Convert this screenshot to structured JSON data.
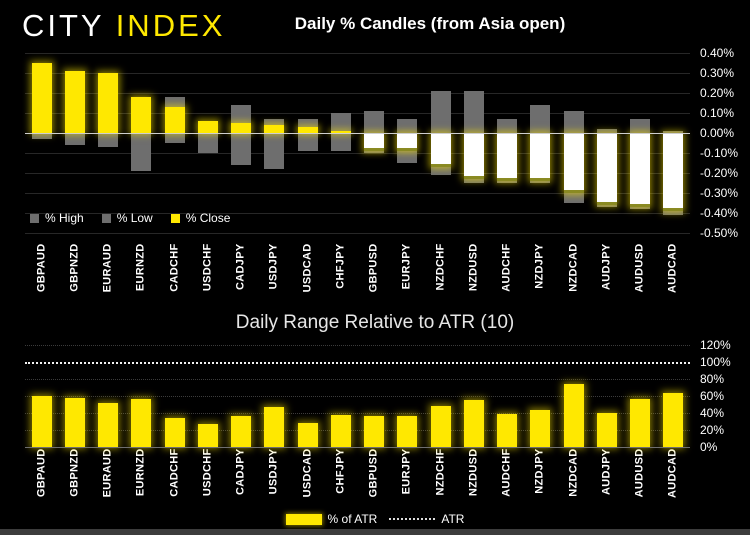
{
  "logo": {
    "city": "CITY",
    "index": "INDEX"
  },
  "colors": {
    "background": "#000000",
    "accent_yellow": "#FFE800",
    "wick_gray": "#6E6E6E",
    "down_candle_white": "#FFFFFF",
    "atr_line_white": "#F2F2F2"
  },
  "chart_data": [
    {
      "type": "bar",
      "subtype": "daily-percent-candles",
      "title": "Daily % Candles (from Asia open)",
      "categories": [
        "GBPAUD",
        "GBPNZD",
        "EURAUD",
        "EURNZD",
        "CADCHF",
        "USDCHF",
        "CADJPY",
        "USDJPY",
        "USDCAD",
        "CHFJPY",
        "GBPUSD",
        "EURJPY",
        "NZDCHF",
        "NZDUSD",
        "AUDCHF",
        "NZDJPY",
        "NZDCAD",
        "AUDJPY",
        "AUDUSD",
        "AUDCAD"
      ],
      "series": [
        {
          "name": "% High",
          "values": [
            0.35,
            0.31,
            0.3,
            0.18,
            0.18,
            0.06,
            0.14,
            0.07,
            0.07,
            0.1,
            0.11,
            0.07,
            0.21,
            0.21,
            0.07,
            0.14,
            0.11,
            0.02,
            0.07,
            0.01
          ]
        },
        {
          "name": "% Low",
          "values": [
            -0.03,
            -0.06,
            -0.07,
            -0.19,
            -0.05,
            -0.1,
            -0.16,
            -0.18,
            -0.09,
            -0.09,
            -0.1,
            -0.15,
            -0.21,
            -0.25,
            -0.25,
            -0.25,
            -0.35,
            -0.37,
            -0.38,
            -0.41
          ]
        },
        {
          "name": "% Close",
          "values": [
            0.35,
            0.31,
            0.3,
            0.18,
            0.13,
            0.06,
            0.05,
            0.04,
            0.03,
            0.01,
            -0.09,
            -0.09,
            -0.17,
            -0.23,
            -0.24,
            -0.24,
            -0.3,
            -0.36,
            -0.37,
            -0.39
          ]
        }
      ],
      "ylabel": "",
      "ylim": [
        -0.5,
        0.4
      ],
      "ytick_labels": [
        "0.40%",
        "0.30%",
        "0.20%",
        "0.10%",
        "0.00%",
        "-0.10%",
        "-0.20%",
        "-0.30%",
        "-0.40%",
        "-0.50%"
      ],
      "grid": true,
      "legend_position": "bottom-left",
      "legend": [
        {
          "label": "% High",
          "swatch": "gray"
        },
        {
          "label": "% Low",
          "swatch": "gray"
        },
        {
          "label": "% Close",
          "swatch": "yellow"
        }
      ]
    },
    {
      "type": "bar",
      "subtype": "percent-of-atr",
      "title": "Daily Range Relative to ATR (10)",
      "categories": [
        "GBPAUD",
        "GBPNZD",
        "EURAUD",
        "EURNZD",
        "CADCHF",
        "USDCHF",
        "CADJPY",
        "USDJPY",
        "USDCAD",
        "CHFJPY",
        "GBPUSD",
        "EURJPY",
        "NZDCHF",
        "NZDUSD",
        "AUDCHF",
        "NZDJPY",
        "NZDCAD",
        "AUDJPY",
        "AUDUSD",
        "AUDCAD"
      ],
      "series": [
        {
          "name": "% of ATR",
          "values": [
            60,
            58,
            52,
            56,
            34,
            27,
            36,
            47,
            28,
            38,
            36,
            36,
            48,
            55,
            39,
            44,
            74,
            40,
            56,
            64
          ]
        }
      ],
      "reference_line": {
        "label": "ATR",
        "value": 100
      },
      "ylabel": "",
      "ylim": [
        0,
        120
      ],
      "ytick_labels": [
        "120%",
        "100%",
        "80%",
        "60%",
        "40%",
        "20%",
        "0%"
      ],
      "grid": true,
      "legend_position": "bottom-center",
      "legend": [
        {
          "label": "% of ATR",
          "swatch": "yellow-bar"
        },
        {
          "label": "ATR",
          "swatch": "dotted-line"
        }
      ]
    }
  ]
}
